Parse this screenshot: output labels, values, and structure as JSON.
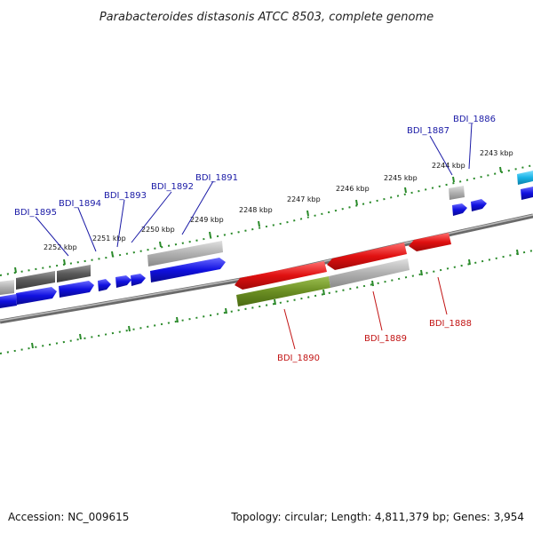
{
  "title": "Parabacteroides distasonis ATCC 8503, complete genome",
  "footer": {
    "accession": "Accession: NC_009615",
    "topology": "Topology: circular; Length: 4,811,379 bp; Genes: 3,954"
  },
  "colors": {
    "forward_label": "#1a1aa6",
    "reverse_label": "#c21414",
    "tick": "#2a8a2a",
    "backbone": "#7a7a7a",
    "gene_blue": "#1010e0",
    "gene_red": "#e01010",
    "gene_olive": "#6b8e23",
    "gene_cyan": "#19b3e6",
    "gene_gray": "#a8a8a8",
    "gene_darkgray": "#5a5a5a"
  },
  "scale_labels": [
    "2243 kbp",
    "2244 kbp",
    "2245 kbp",
    "2246 kbp",
    "2247 kbp",
    "2248 kbp",
    "2249 kbp",
    "2250 kbp",
    "2251 kbp",
    "2252 kbp"
  ],
  "forward_gene_labels": [
    "BDI_1886",
    "BDI_1887",
    "BDI_1891",
    "BDI_1892",
    "BDI_1893",
    "BDI_1894",
    "BDI_1895"
  ],
  "reverse_gene_labels": [
    "BDI_1888",
    "BDI_1889",
    "BDI_1890"
  ]
}
